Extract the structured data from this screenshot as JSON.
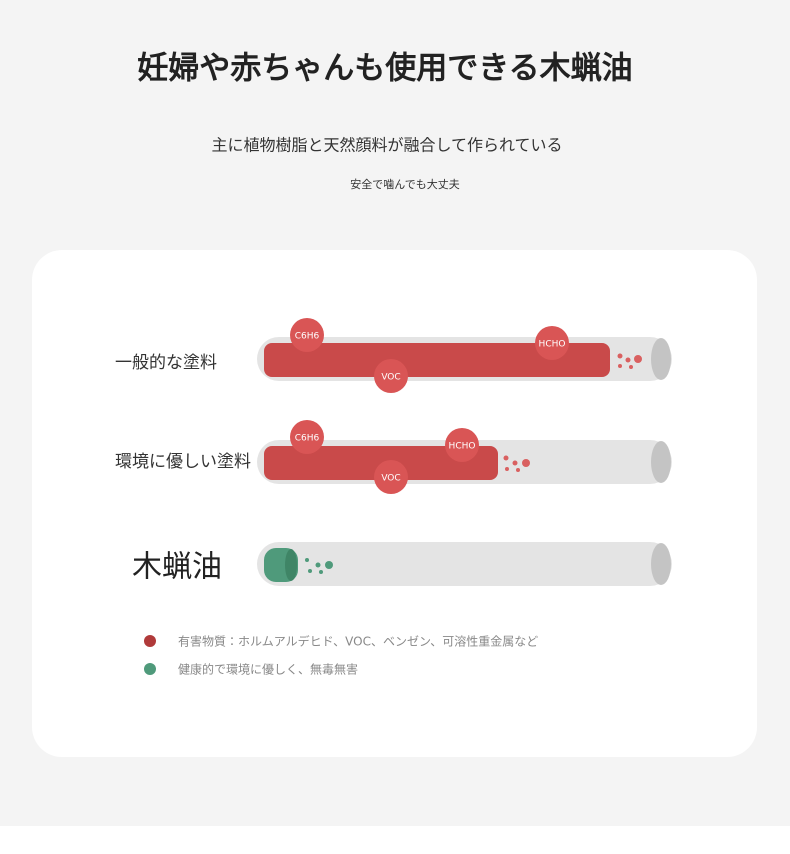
{
  "header": {
    "title": "妊婦や赤ちゃんも使用できる木蝋油",
    "subtitle": "主に植物樹脂と天然顔料が融合して作られている",
    "note": "安全で噛んでも大丈夫"
  },
  "rows": [
    {
      "label": "一般的な塗料",
      "bubbles": [
        "C6H6",
        "HCHO",
        "VOC"
      ]
    },
    {
      "label": "環境に優しい塗料",
      "bubbles": [
        "C6H6",
        "HCHO",
        "VOC"
      ]
    },
    {
      "label": "木蝋油"
    }
  ],
  "legend": [
    "有害物質：ホルムアルデヒド、VOC、ベンゼン、可溶性重金属など",
    "健康的で環境に優しく、無毒無害"
  ]
}
